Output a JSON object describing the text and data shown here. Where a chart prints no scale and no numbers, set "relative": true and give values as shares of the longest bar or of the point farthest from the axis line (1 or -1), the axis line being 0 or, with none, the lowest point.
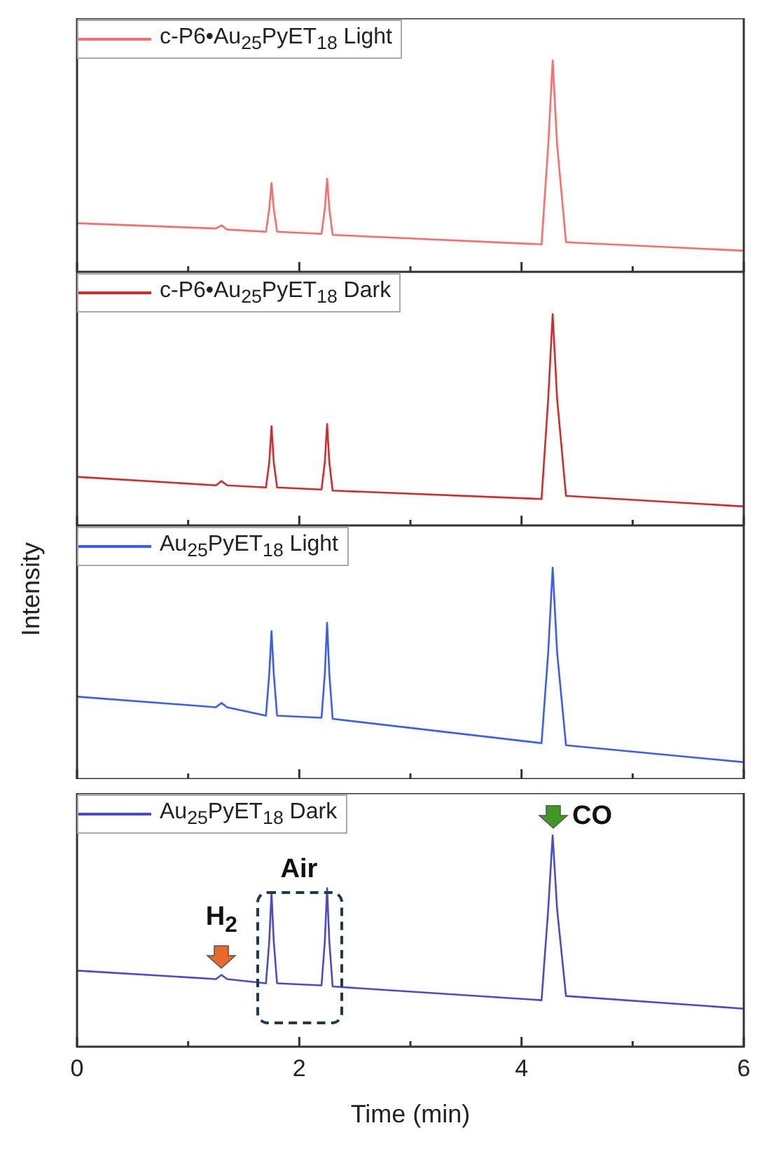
{
  "chart_data": [
    {
      "type": "line",
      "relative": true,
      "legend": "top left",
      "tick_labels": false,
      "xlim": [
        0,
        6
      ],
      "xticks": [
        0,
        {
          "value": 1,
          "label": null
        },
        2,
        {
          "value": 3,
          "label": null
        },
        4,
        {
          "value": 5,
          "label": null
        },
        6
      ],
      "x": [
        0,
        1.25,
        1.3,
        1.35,
        1.7,
        1.73,
        1.75,
        1.77,
        1.8,
        2.2,
        2.23,
        2.25,
        2.27,
        2.3,
        4.18,
        4.24,
        4.28,
        4.32,
        4.4,
        6
      ],
      "series": [
        {
          "name": "c-P6•Au$_{25}$PyET$_{18}$ Light",
          "color": "#ff6b6b",
          "values": [
            0.23,
            0.205,
            0.22,
            0.2,
            0.19,
            0.3,
            0.42,
            0.3,
            0.19,
            0.18,
            0.3,
            0.44,
            0.3,
            0.175,
            0.13,
            0.6,
            1,
            0.6,
            0.14,
            0.1
          ]
        }
      ]
    },
    {
      "type": "line",
      "relative": true,
      "legend": "top left",
      "tick_labels": false,
      "xlim": [
        0,
        6
      ],
      "xticks": [
        0,
        {
          "value": 1,
          "label": null
        },
        2,
        {
          "value": 3,
          "label": null
        },
        4,
        {
          "value": 5,
          "label": null
        },
        6
      ],
      "x": [
        0,
        1.25,
        1.3,
        1.35,
        1.7,
        1.73,
        1.75,
        1.77,
        1.8,
        2.2,
        2.23,
        2.25,
        2.27,
        2.3,
        4.18,
        4.24,
        4.28,
        4.32,
        4.4,
        6
      ],
      "series": [
        {
          "name": "c-P6•Au$_{25}$PyET$_{18}$ Dark",
          "color": "#d42a2a",
          "values": [
            0.23,
            0.19,
            0.21,
            0.19,
            0.18,
            0.3,
            0.47,
            0.3,
            0.18,
            0.17,
            0.3,
            0.48,
            0.3,
            0.165,
            0.125,
            0.6,
            1,
            0.6,
            0.14,
            0.09
          ]
        }
      ]
    },
    {
      "type": "line",
      "relative": true,
      "ylabel": "Intensity",
      "legend": "top left",
      "tick_labels": false,
      "xlim": [
        0,
        6
      ],
      "xticks": [
        0,
        {
          "value": 1,
          "label": null
        },
        2,
        {
          "value": 3,
          "label": null
        },
        4,
        {
          "value": 5,
          "label": null
        },
        6
      ],
      "x": [
        0,
        1.25,
        1.3,
        1.35,
        1.7,
        1.73,
        1.75,
        1.77,
        1.8,
        2.2,
        2.23,
        2.25,
        2.27,
        2.3,
        4.18,
        4.24,
        4.28,
        4.32,
        4.4,
        6
      ],
      "series": [
        {
          "name": "Au$_{25}$PyET$_{18}$ Light",
          "color": "#3a5cff",
          "values": [
            0.39,
            0.34,
            0.36,
            0.34,
            0.3,
            0.5,
            0.7,
            0.5,
            0.3,
            0.29,
            0.5,
            0.74,
            0.5,
            0.285,
            0.17,
            0.6,
            1,
            0.6,
            0.16,
            0.08
          ]
        }
      ]
    },
    {
      "type": "line",
      "relative": true,
      "legend": "top left",
      "xlabel": "Time (min)",
      "xlim": [
        0,
        6
      ],
      "xticks": [
        0,
        {
          "value": 1,
          "label": null
        },
        2,
        {
          "value": 3,
          "label": null
        },
        4,
        {
          "value": 5,
          "label": null
        },
        6
      ],
      "x": [
        0,
        1.25,
        1.3,
        1.35,
        1.7,
        1.73,
        1.75,
        1.77,
        1.8,
        2.2,
        2.23,
        2.25,
        2.27,
        2.3,
        4.18,
        4.24,
        4.28,
        4.32,
        4.4,
        6
      ],
      "annotations": [
        {
          "text": "H$_{2}$",
          "x": 1.3,
          "y": 0.34
        },
        "Air",
        {
          "text": "CO",
          "x": 4.28,
          "y": 1
        }
      ],
      "series": [
        {
          "name": "Au$_{25}$PyET$_{18}$ Dark",
          "color": "#4a4ad0",
          "values": [
            0.36,
            0.32,
            0.34,
            0.32,
            0.3,
            0.5,
            0.73,
            0.5,
            0.3,
            0.29,
            0.5,
            0.75,
            0.5,
            0.285,
            0.22,
            0.65,
            1,
            0.65,
            0.24,
            0.18
          ]
        }
      ]
    }
  ]
}
